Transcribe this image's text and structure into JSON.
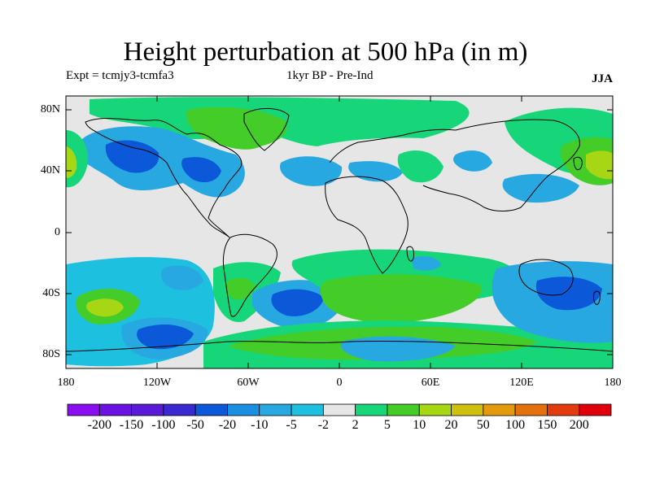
{
  "title": "Height perturbation at 500 hPa (in m)",
  "subtitle_left": "Expt = tcmjy3-tcmfa3",
  "subtitle_center": "1kyr BP - Pre-Ind",
  "season": "JJA",
  "lat_labels": [
    "80N",
    "40N",
    "0",
    "40S",
    "80S"
  ],
  "lon_labels": [
    "180",
    "120W",
    "60W",
    "0",
    "60E",
    "120E",
    "180"
  ],
  "colorbar": {
    "labels": [
      "-200",
      "-150",
      "-100",
      "-50",
      "-20",
      "-10",
      "-5",
      "-2",
      "2",
      "5",
      "10",
      "20",
      "50",
      "100",
      "150",
      "200"
    ],
    "colors": [
      "#8a0ef0",
      "#6b12e0",
      "#5a1ad8",
      "#3a28d0",
      "#0b58d8",
      "#1a8ee0",
      "#28a8e0",
      "#1ec0e0",
      "#e6e6e6",
      "#17d67a",
      "#44cc28",
      "#a6d614",
      "#cfc010",
      "#e39a0c",
      "#e4700e",
      "#e23c0e",
      "#e0000c"
    ]
  },
  "colors": {
    "background": "#e6e6e6",
    "coast": "#000000"
  }
}
